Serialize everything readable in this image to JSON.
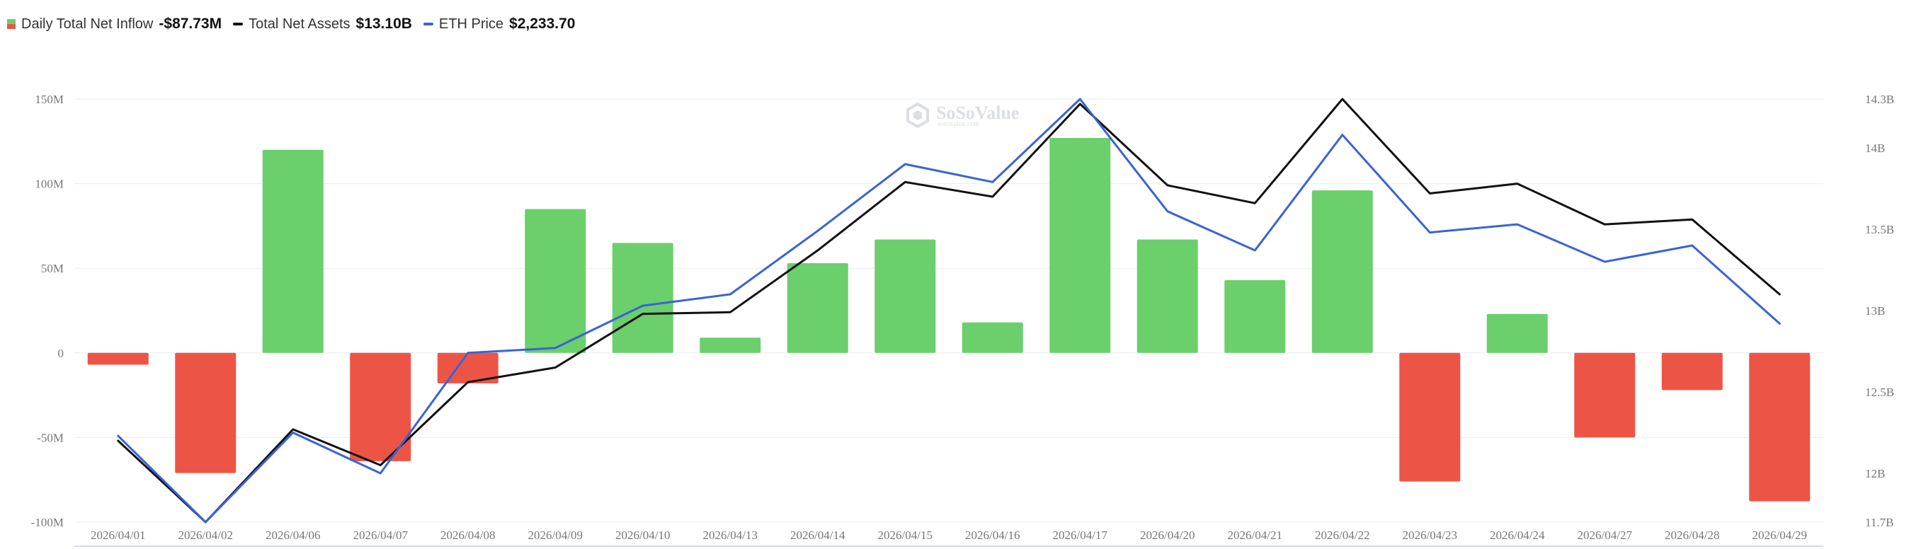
{
  "legend": {
    "items": [
      {
        "label": "Daily Total Net Inflow",
        "value": "-$87.73M",
        "swatch": "bar",
        "color_pos": "#6bcf6b",
        "color_neg": "#ec5546"
      },
      {
        "label": "Total Net Assets",
        "value": "$13.10B",
        "swatch": "line",
        "color": "#111111"
      },
      {
        "label": "ETH Price",
        "value": "$2,233.70",
        "swatch": "line",
        "color": "#3a63d6"
      }
    ]
  },
  "watermark": {
    "name": "SoSoValue",
    "sub": "sosovalue.com"
  },
  "chart_data": {
    "type": "bar",
    "categories": [
      "2026/04/01",
      "2026/04/02",
      "2026/04/06",
      "2026/04/07",
      "2026/04/08",
      "2026/04/09",
      "2026/04/10",
      "2026/04/13",
      "2026/04/14",
      "2026/04/15",
      "2026/04/16",
      "2026/04/17",
      "2026/04/20",
      "2026/04/21",
      "2026/04/22",
      "2026/04/23",
      "2026/04/24",
      "2026/04/27",
      "2026/04/28",
      "2026/04/29"
    ],
    "series": [
      {
        "name": "Daily Total Net Inflow",
        "type": "bar",
        "axis": "left",
        "values": [
          -7,
          -71,
          120,
          -64,
          -18,
          85,
          65,
          9,
          53,
          67,
          18,
          127,
          67,
          43,
          96,
          -76,
          23,
          -50,
          -22,
          -87.73
        ]
      },
      {
        "name": "Total Net Assets",
        "type": "line",
        "axis": "right",
        "color": "#111111",
        "values": [
          12.2,
          11.7,
          12.27,
          12.05,
          12.56,
          12.65,
          12.98,
          12.99,
          13.37,
          13.79,
          13.7,
          14.27,
          13.77,
          13.66,
          14.3,
          13.72,
          13.78,
          13.53,
          13.56,
          13.1
        ]
      },
      {
        "name": "ETH Price",
        "type": "line",
        "axis": "right",
        "color": "#3a63d6",
        "values": [
          12.23,
          11.7,
          12.25,
          12.0,
          12.74,
          12.77,
          13.03,
          13.1,
          13.49,
          13.9,
          13.79,
          14.3,
          13.61,
          13.37,
          14.08,
          13.48,
          13.53,
          13.3,
          13.4,
          12.92
        ]
      }
    ],
    "y_left": {
      "ticks": [
        150,
        100,
        50,
        0,
        -50,
        -100
      ],
      "tick_labels": [
        "150M",
        "100M",
        "50M",
        "0",
        "-50M",
        "-100M"
      ],
      "range": [
        -100,
        150
      ]
    },
    "y_right": {
      "ticks": [
        14.3,
        14,
        13.5,
        13,
        12.5,
        12,
        11.7
      ],
      "tick_labels": [
        "14.3B",
        "14B",
        "13.5B",
        "13B",
        "12.5B",
        "12B",
        "11.7B"
      ],
      "range": [
        11.7,
        14.3
      ]
    },
    "grid": true,
    "legend_position": "top-left"
  }
}
